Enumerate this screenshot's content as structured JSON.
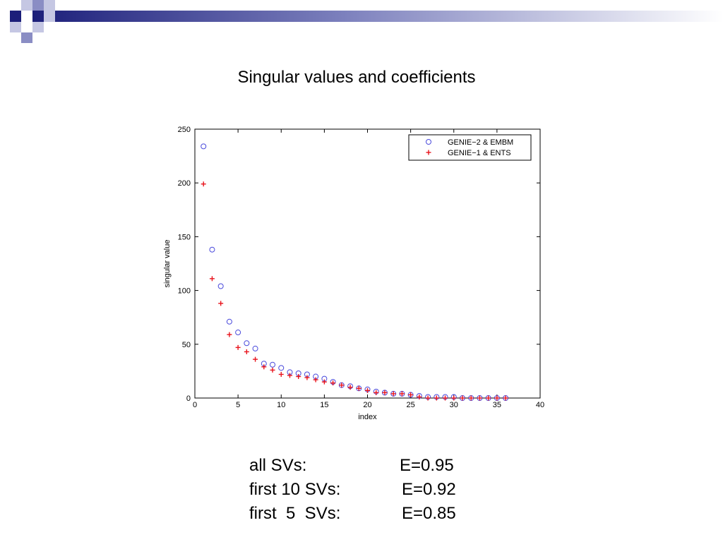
{
  "slide": {
    "title": "Singular values and coefficients"
  },
  "stats": [
    {
      "label": "all SVs:",
      "value": "E=0.95"
    },
    {
      "label": "first 10 SVs:",
      "value": "E=0.92"
    },
    {
      "label": "first  5  SVs:",
      "value": "E=0.85"
    }
  ],
  "chart_data": {
    "type": "scatter",
    "title": "",
    "xlabel": "index",
    "ylabel": "singular value",
    "xlim": [
      0,
      40
    ],
    "ylim": [
      0,
      250
    ],
    "xticks": [
      0,
      5,
      10,
      15,
      20,
      25,
      30,
      35,
      40
    ],
    "yticks": [
      0,
      50,
      100,
      150,
      200,
      250
    ],
    "grid": false,
    "legend_position": "top-right",
    "series": [
      {
        "name": "GENIE−2 & EMBM",
        "marker": "circle",
        "color": "#4b4bdc",
        "x": [
          1,
          2,
          3,
          4,
          5,
          6,
          7,
          8,
          9,
          10,
          11,
          12,
          13,
          14,
          15,
          16,
          17,
          18,
          19,
          20,
          21,
          22,
          23,
          24,
          25,
          26,
          27,
          28,
          29,
          30,
          31,
          32,
          33,
          34,
          35,
          36
        ],
        "y": [
          234,
          138,
          104,
          71,
          61,
          51,
          46,
          32,
          31,
          28,
          24,
          23,
          22,
          20,
          18,
          15,
          12,
          11,
          9,
          8,
          6,
          5,
          4,
          4,
          3,
          2,
          1,
          1,
          1,
          1,
          0,
          0,
          0,
          0,
          0,
          0
        ]
      },
      {
        "name": "GENIE−1 & ENTS",
        "marker": "plus",
        "color": "#e8131c",
        "x": [
          1,
          2,
          3,
          4,
          5,
          6,
          7,
          8,
          9,
          10,
          11,
          12,
          13,
          14,
          15,
          16,
          17,
          18,
          19,
          20,
          21,
          22,
          23,
          24,
          25,
          26,
          27,
          28,
          29,
          30,
          31,
          32,
          33,
          34,
          35,
          36
        ],
        "y": [
          199,
          111,
          88,
          59,
          47,
          43,
          36,
          29,
          26,
          22,
          21,
          20,
          19,
          17,
          15,
          14,
          12,
          10,
          9,
          7,
          5,
          5,
          4,
          4,
          3,
          1,
          0,
          0,
          0,
          0,
          0,
          0,
          0,
          0,
          0,
          0
        ]
      }
    ]
  }
}
